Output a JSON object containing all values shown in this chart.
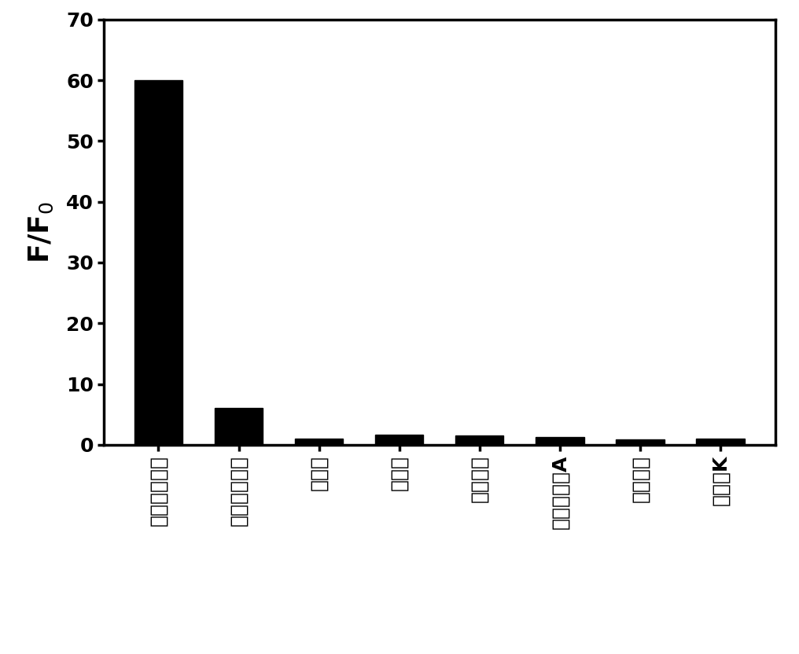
{
  "categories": [
    "人血清白蛋白",
    "牛血清白蛋白",
    "溶菌酶",
    "组蛋白",
    "果蛋白酶",
    "果蛋白酶原A",
    "血红蛋白",
    "蛋白酶K"
  ],
  "values": [
    60,
    6,
    1,
    1.6,
    1.5,
    1.2,
    0.9,
    1.0
  ],
  "bar_color": "#000000",
  "ylabel": "F/F$_0$",
  "ylim": [
    0,
    70
  ],
  "yticks": [
    0,
    10,
    20,
    30,
    40,
    50,
    60,
    70
  ],
  "background_color": "#ffffff",
  "bar_width": 0.6,
  "tick_label_fontsize": 18,
  "ylabel_fontsize": 26,
  "spine_linewidth": 2.5
}
